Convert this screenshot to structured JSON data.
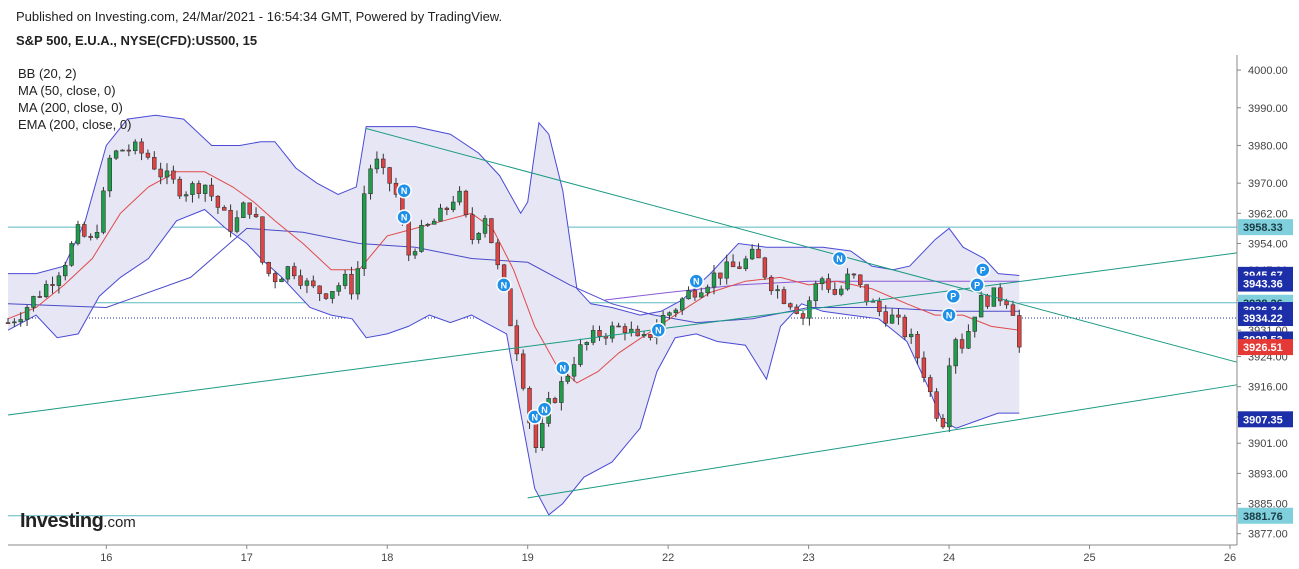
{
  "header": {
    "published": "Published on Investing.com, 24/Mar/2021 - 16:54:34 GMT, Powered by TradingView.",
    "symbol": "S&P 500, E.U.A., NYSE(CFD):US500, 15"
  },
  "indicators": [
    "BB (20, 2)",
    "MA (50, close, 0)",
    "MA (200, close, 0)",
    "EMA (200, close, 0)"
  ],
  "logo": {
    "main": "Investing",
    "suffix": ".com"
  },
  "colors": {
    "up": "#1e9e4a",
    "down": "#e04343",
    "bb_fill": "#e6e6f4",
    "bb_line": "#4a4ad6",
    "ma": "#e24a4a",
    "ma200": "#4b4bc8",
    "ema200": "#8a5ad8",
    "trend": "#1a9a82",
    "hline": "#5ab8c4",
    "marker": "#1e90e8",
    "label_blue": "#1d2fa8",
    "label_cyan": "#7fd0dc",
    "label_red": "#e53935"
  },
  "chart_data": {
    "type": "candlestick",
    "ylim": [
      3874,
      4004
    ],
    "y_ticks": [
      3877,
      3885,
      3893,
      3901,
      3908,
      3916,
      3924,
      3931,
      3939,
      3947,
      3954,
      3962,
      3970,
      3980,
      3990,
      4000
    ],
    "y_tick_labels": [
      "3877.00",
      "3885.00",
      "3893.00",
      "3901.00",
      "3908.00",
      "3916.00",
      "3924.00",
      "3931.00",
      "3939.00",
      "3947.00",
      "3954.00",
      "3962.00",
      "3970.00",
      "3980.00",
      "3990.00",
      "4000.00"
    ],
    "x_ticks": [
      "16",
      "17",
      "18",
      "19",
      "22",
      "23",
      "24",
      "25",
      "26"
    ],
    "x_tick_pos": [
      0,
      1,
      2,
      3,
      4,
      5,
      6,
      7,
      8
    ],
    "x_range": [
      -0.7,
      8.05
    ],
    "last_x": 6.5,
    "price_labels": [
      {
        "value": 3958.33,
        "text": "3958.33",
        "style": "cyan"
      },
      {
        "value": 3945.67,
        "text": "3945.67",
        "style": "blue"
      },
      {
        "value": 3943.36,
        "text": "3943.36",
        "style": "blue"
      },
      {
        "value": 3938.26,
        "text": "3938.26",
        "style": "cyan"
      },
      {
        "value": 3936.34,
        "text": "3936.34",
        "style": "blue"
      },
      {
        "value": 3934.22,
        "text": "3934.22",
        "style": "blue"
      },
      {
        "value": 3928.53,
        "text": "3928.53",
        "style": "blue"
      },
      {
        "value": 3926.51,
        "text": "3926.51",
        "style": "red"
      },
      {
        "value": 3907.35,
        "text": "3907.35",
        "style": "blue"
      },
      {
        "value": 3881.76,
        "text": "3881.76",
        "style": "cyan"
      }
    ],
    "h_lines": [
      3958.33,
      3938.26,
      3881.76
    ],
    "dotted_line": 3934.22,
    "trend_lines": [
      {
        "x1": -0.7,
        "y1": 3908.5,
        "x2": 8.05,
        "y2": 3951.5
      },
      {
        "x1": 1.85,
        "y1": 3984.5,
        "x2": 8.05,
        "y2": 3922.5
      },
      {
        "x1": 3.0,
        "y1": 3886.5,
        "x2": 8.05,
        "y2": 3916.5
      }
    ],
    "closes": [
      [
        -0.7,
        3933
      ],
      [
        -0.6,
        3936
      ],
      [
        -0.5,
        3940
      ],
      [
        -0.4,
        3944
      ],
      [
        -0.3,
        3949
      ],
      [
        -0.2,
        3957
      ],
      [
        -0.1,
        3954
      ],
      [
        -0.03,
        3964
      ],
      [
        0.02,
        3976
      ],
      [
        0.1,
        3979
      ],
      [
        0.2,
        3979
      ],
      [
        0.3,
        3977
      ],
      [
        0.4,
        3972
      ],
      [
        0.55,
        3968
      ],
      [
        0.7,
        3970
      ],
      [
        0.82,
        3962
      ],
      [
        0.9,
        3958
      ],
      [
        1.0,
        3965
      ],
      [
        1.06,
        3961
      ],
      [
        1.12,
        3947
      ],
      [
        1.2,
        3945
      ],
      [
        1.32,
        3948
      ],
      [
        1.45,
        3942
      ],
      [
        1.55,
        3941
      ],
      [
        1.7,
        3944
      ],
      [
        1.78,
        3941
      ],
      [
        1.82,
        3965
      ],
      [
        1.9,
        3977
      ],
      [
        1.97,
        3972
      ],
      [
        2.05,
        3969
      ],
      [
        2.15,
        3951
      ],
      [
        2.25,
        3957
      ],
      [
        2.4,
        3962
      ],
      [
        2.5,
        3968
      ],
      [
        2.6,
        3955
      ],
      [
        2.7,
        3962
      ],
      [
        2.8,
        3945
      ],
      [
        2.9,
        3930
      ],
      [
        2.95,
        3922
      ],
      [
        3.0,
        3910
      ],
      [
        3.05,
        3899
      ],
      [
        3.1,
        3904
      ],
      [
        3.15,
        3911
      ],
      [
        3.25,
        3917
      ],
      [
        3.35,
        3925
      ],
      [
        3.5,
        3930
      ],
      [
        3.6,
        3931
      ],
      [
        3.7,
        3932
      ],
      [
        3.8,
        3927
      ],
      [
        3.85,
        3929
      ],
      [
        3.95,
        3934
      ],
      [
        4.05,
        3937
      ],
      [
        4.15,
        3941
      ],
      [
        4.35,
        3946
      ],
      [
        4.5,
        3948
      ],
      [
        4.62,
        3951
      ],
      [
        4.72,
        3944
      ],
      [
        4.82,
        3940
      ],
      [
        4.9,
        3938
      ],
      [
        4.97,
        3934
      ],
      [
        5.02,
        3941
      ],
      [
        5.1,
        3945
      ],
      [
        5.2,
        3940
      ],
      [
        5.3,
        3946
      ],
      [
        5.4,
        3940
      ],
      [
        5.5,
        3936
      ],
      [
        5.6,
        3934
      ],
      [
        5.72,
        3929
      ],
      [
        5.82,
        3920
      ],
      [
        5.9,
        3910
      ],
      [
        5.96,
        3907
      ],
      [
        6.02,
        3931
      ],
      [
        6.1,
        3927
      ],
      [
        6.2,
        3938
      ],
      [
        6.3,
        3940
      ],
      [
        6.4,
        3940
      ],
      [
        6.5,
        3934
      ]
    ],
    "ma_red": [
      [
        -0.7,
        3934
      ],
      [
        -0.5,
        3937
      ],
      [
        -0.3,
        3943
      ],
      [
        -0.1,
        3950
      ],
      [
        0.1,
        3962
      ],
      [
        0.3,
        3969
      ],
      [
        0.5,
        3973
      ],
      [
        0.7,
        3973
      ],
      [
        0.9,
        3969
      ],
      [
        1.05,
        3965
      ],
      [
        1.2,
        3960
      ],
      [
        1.4,
        3954
      ],
      [
        1.6,
        3947
      ],
      [
        1.8,
        3947
      ],
      [
        2.0,
        3956
      ],
      [
        2.2,
        3958
      ],
      [
        2.4,
        3960
      ],
      [
        2.6,
        3962
      ],
      [
        2.75,
        3958
      ],
      [
        2.9,
        3947
      ],
      [
        3.05,
        3932
      ],
      [
        3.2,
        3922
      ],
      [
        3.35,
        3917
      ],
      [
        3.5,
        3920
      ],
      [
        3.65,
        3925
      ],
      [
        3.85,
        3930
      ],
      [
        4.05,
        3935
      ],
      [
        4.3,
        3941
      ],
      [
        4.55,
        3944
      ],
      [
        4.8,
        3945
      ],
      [
        5.0,
        3943
      ],
      [
        5.2,
        3944
      ],
      [
        5.45,
        3942
      ],
      [
        5.7,
        3938
      ],
      [
        5.9,
        3935
      ],
      [
        6.1,
        3935
      ],
      [
        6.3,
        3932
      ],
      [
        6.5,
        3931
      ]
    ],
    "bb_upper": [
      [
        -0.7,
        3946
      ],
      [
        -0.5,
        3946
      ],
      [
        -0.3,
        3948
      ],
      [
        -0.15,
        3960
      ],
      [
        0.0,
        3980
      ],
      [
        0.15,
        3987
      ],
      [
        0.35,
        3988
      ],
      [
        0.55,
        3987
      ],
      [
        0.75,
        3980
      ],
      [
        0.95,
        3980
      ],
      [
        1.1,
        3981
      ],
      [
        1.2,
        3981
      ],
      [
        1.35,
        3974
      ],
      [
        1.5,
        3970
      ],
      [
        1.65,
        3967
      ],
      [
        1.78,
        3969
      ],
      [
        1.85,
        3985
      ],
      [
        2.0,
        3985
      ],
      [
        2.2,
        3985
      ],
      [
        2.45,
        3983
      ],
      [
        2.65,
        3978
      ],
      [
        2.8,
        3972
      ],
      [
        2.95,
        3962
      ],
      [
        3.0,
        3965
      ],
      [
        3.08,
        3986
      ],
      [
        3.15,
        3983
      ],
      [
        3.25,
        3968
      ],
      [
        3.35,
        3942
      ],
      [
        3.45,
        3938
      ],
      [
        3.6,
        3937
      ],
      [
        3.8,
        3935
      ],
      [
        3.95,
        3936
      ],
      [
        4.1,
        3939
      ],
      [
        4.3,
        3946
      ],
      [
        4.5,
        3954
      ],
      [
        4.7,
        3953
      ],
      [
        4.9,
        3953
      ],
      [
        5.1,
        3953
      ],
      [
        5.3,
        3952
      ],
      [
        5.45,
        3948
      ],
      [
        5.6,
        3947
      ],
      [
        5.72,
        3948
      ],
      [
        5.9,
        3955
      ],
      [
        6.0,
        3958
      ],
      [
        6.1,
        3953
      ],
      [
        6.25,
        3950
      ],
      [
        6.35,
        3946
      ],
      [
        6.5,
        3945.5
      ]
    ],
    "bb_lower": [
      [
        -0.7,
        3931
      ],
      [
        -0.5,
        3935
      ],
      [
        -0.35,
        3929
      ],
      [
        -0.2,
        3930
      ],
      [
        -0.05,
        3940
      ],
      [
        0.1,
        3945
      ],
      [
        0.3,
        3950
      ],
      [
        0.5,
        3960
      ],
      [
        0.7,
        3963
      ],
      [
        0.85,
        3958
      ],
      [
        1.0,
        3954
      ],
      [
        1.1,
        3950
      ],
      [
        1.25,
        3945
      ],
      [
        1.45,
        3937
      ],
      [
        1.6,
        3935
      ],
      [
        1.75,
        3934
      ],
      [
        1.85,
        3929
      ],
      [
        2.0,
        3930
      ],
      [
        2.15,
        3932
      ],
      [
        2.3,
        3935
      ],
      [
        2.45,
        3933
      ],
      [
        2.6,
        3935
      ],
      [
        2.75,
        3932
      ],
      [
        2.85,
        3930
      ],
      [
        2.95,
        3909
      ],
      [
        3.05,
        3889
      ],
      [
        3.15,
        3882
      ],
      [
        3.25,
        3885
      ],
      [
        3.4,
        3892
      ],
      [
        3.6,
        3896
      ],
      [
        3.8,
        3905
      ],
      [
        3.92,
        3920
      ],
      [
        4.05,
        3929
      ],
      [
        4.2,
        3930
      ],
      [
        4.35,
        3928
      ],
      [
        4.55,
        3927
      ],
      [
        4.7,
        3918
      ],
      [
        4.8,
        3932
      ],
      [
        4.95,
        3938
      ],
      [
        5.1,
        3936
      ],
      [
        5.3,
        3935
      ],
      [
        5.5,
        3934
      ],
      [
        5.7,
        3928
      ],
      [
        5.85,
        3916
      ],
      [
        5.95,
        3907
      ],
      [
        6.05,
        3905
      ],
      [
        6.2,
        3907
      ],
      [
        6.35,
        3909
      ],
      [
        6.5,
        3909
      ]
    ],
    "ma200": [
      [
        -0.7,
        3938
      ],
      [
        0.0,
        3937
      ],
      [
        0.6,
        3945
      ],
      [
        1.0,
        3958
      ],
      [
        1.4,
        3957
      ],
      [
        1.8,
        3954
      ],
      [
        2.2,
        3953
      ],
      [
        2.6,
        3950
      ],
      [
        3.0,
        3949
      ],
      [
        3.3,
        3943
      ],
      [
        3.6,
        3938
      ],
      [
        3.9,
        3935
      ],
      [
        4.2,
        3933
      ],
      [
        4.6,
        3934
      ],
      [
        5.0,
        3937
      ],
      [
        5.5,
        3937
      ],
      [
        6.0,
        3936
      ],
      [
        6.5,
        3936
      ]
    ],
    "ema200": [
      [
        3.55,
        3939
      ],
      [
        4.0,
        3941
      ],
      [
        4.5,
        3943
      ],
      [
        5.0,
        3944
      ],
      [
        5.5,
        3944
      ],
      [
        6.0,
        3944
      ],
      [
        6.5,
        3944
      ]
    ],
    "markers": [
      {
        "label": "N",
        "x": 2.12,
        "y": 3968
      },
      {
        "label": "N",
        "x": 2.12,
        "y": 3961
      },
      {
        "label": "N",
        "x": 2.83,
        "y": 3943
      },
      {
        "label": "N",
        "x": 3.05,
        "y": 3908
      },
      {
        "label": "N",
        "x": 3.12,
        "y": 3910
      },
      {
        "label": "N",
        "x": 3.25,
        "y": 3921
      },
      {
        "label": "N",
        "x": 3.93,
        "y": 3931
      },
      {
        "label": "N",
        "x": 4.2,
        "y": 3944
      },
      {
        "label": "N",
        "x": 5.22,
        "y": 3950
      },
      {
        "label": "N",
        "x": 6.0,
        "y": 3935
      },
      {
        "label": "P",
        "x": 6.03,
        "y": 3940
      },
      {
        "label": "P",
        "x": 6.2,
        "y": 3943
      },
      {
        "label": "P",
        "x": 6.24,
        "y": 3947
      }
    ]
  }
}
